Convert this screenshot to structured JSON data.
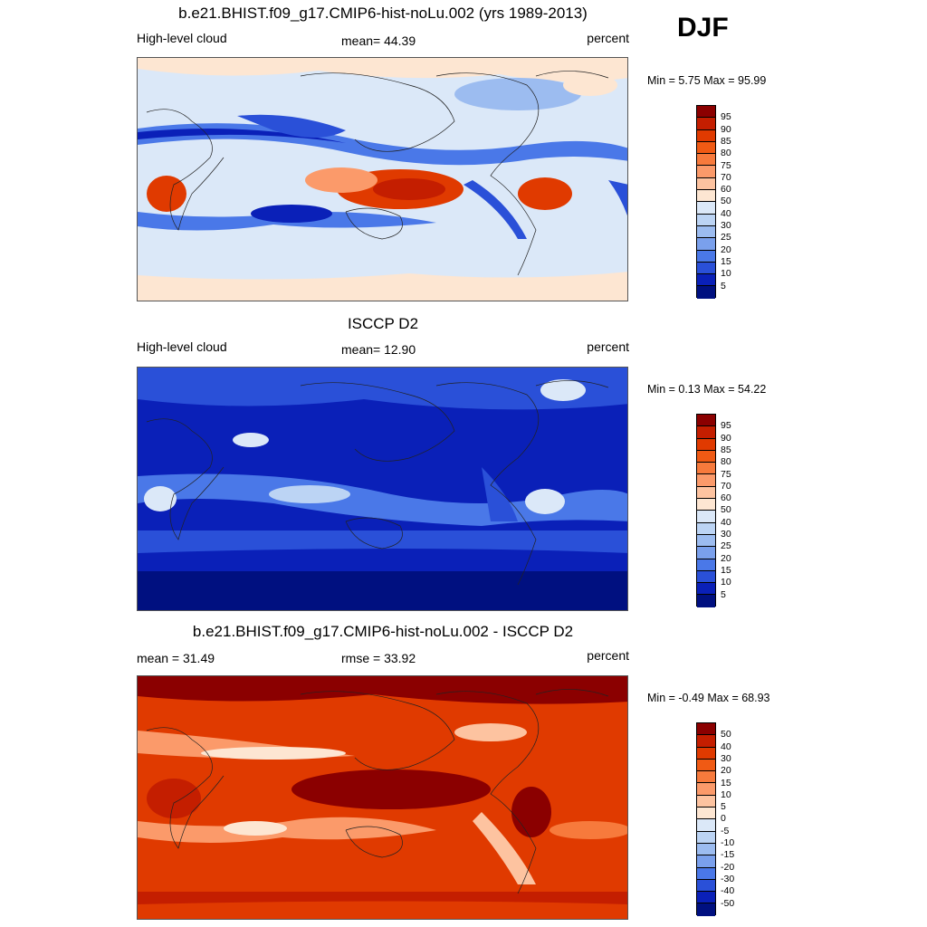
{
  "season": "DJF",
  "panels": [
    {
      "title": "b.e21.BHIST.f09_g17.CMIP6-hist-noLu.002 (yrs 1989-2013)",
      "left_label": "High-level cloud",
      "center_label": "mean=  44.39",
      "right_label": "percent",
      "minmax": "Min =   5.75 Max =  95.99",
      "ticks": [
        "95",
        "90",
        "85",
        "80",
        "75",
        "70",
        "60",
        "50",
        "40",
        "30",
        "25",
        "20",
        "15",
        "10",
        "5"
      ],
      "colors": [
        "#8b0000",
        "#c41e00",
        "#e03a00",
        "#f05a14",
        "#f77a3c",
        "#fb9a6a",
        "#fdc3a0",
        "#fde6d2",
        "#dbe8f8",
        "#bcd4f4",
        "#9cbcf0",
        "#7aa0ec",
        "#4a78e8",
        "#2a50d8",
        "#0a20b8",
        "#001080"
      ],
      "theme": "model"
    },
    {
      "title": "ISCCP D2",
      "left_label": "High-level cloud",
      "center_label": "mean=  12.90",
      "right_label": "percent",
      "minmax": "Min =   0.13 Max =  54.22",
      "ticks": [
        "95",
        "90",
        "85",
        "80",
        "75",
        "70",
        "60",
        "50",
        "40",
        "30",
        "25",
        "20",
        "15",
        "10",
        "5"
      ],
      "colors": [
        "#8b0000",
        "#c41e00",
        "#e03a00",
        "#f05a14",
        "#f77a3c",
        "#fb9a6a",
        "#fdc3a0",
        "#fde6d2",
        "#dbe8f8",
        "#bcd4f4",
        "#9cbcf0",
        "#7aa0ec",
        "#4a78e8",
        "#2a50d8",
        "#0a20b8",
        "#001080"
      ],
      "theme": "obs"
    },
    {
      "title": "b.e21.BHIST.f09_g17.CMIP6-hist-noLu.002 - ISCCP D2",
      "left_label": "mean =  31.49",
      "center_label": "rmse =  33.92",
      "right_label": "percent",
      "minmax": "Min =  -0.49 Max =  68.93",
      "ticks": [
        "50",
        "40",
        "30",
        "20",
        "15",
        "10",
        "5",
        "0",
        "-5",
        "-10",
        "-15",
        "-20",
        "-30",
        "-40",
        "-50"
      ],
      "colors": [
        "#8b0000",
        "#c41e00",
        "#e03a00",
        "#f05a14",
        "#f77a3c",
        "#fb9a6a",
        "#fdc3a0",
        "#fde6d2",
        "#dbe8f8",
        "#bcd4f4",
        "#9cbcf0",
        "#7aa0ec",
        "#4a78e8",
        "#2a50d8",
        "#0a20b8",
        "#001080"
      ],
      "theme": "diff"
    }
  ]
}
